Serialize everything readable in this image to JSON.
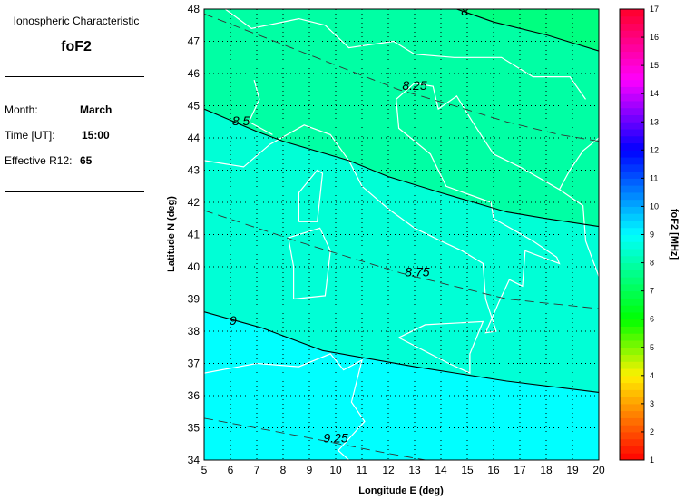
{
  "info": {
    "heading": "Ionospheric Characteristic",
    "characteristic": "foF2",
    "month_label": "Month:",
    "month_value": "March",
    "time_label": "Time [UT]:",
    "time_value": "15:00",
    "r12_label": "Effective R12:",
    "r12_value": "65"
  },
  "chart_data": {
    "type": "contour-map",
    "xlabel": "Longitude E (deg)",
    "ylabel": "Latitude N (deg)",
    "xlim": [
      5,
      20
    ],
    "ylim": [
      34,
      48
    ],
    "xticks": [
      "5",
      "6",
      "7",
      "8",
      "9",
      "10",
      "11",
      "12",
      "13",
      "14",
      "15",
      "16",
      "17",
      "18",
      "19",
      "20"
    ],
    "yticks": [
      "34",
      "35",
      "36",
      "37",
      "38",
      "39",
      "40",
      "41",
      "42",
      "43",
      "44",
      "45",
      "46",
      "47",
      "48"
    ],
    "grid": true,
    "colorbar": {
      "label": "foF2 [MHz]",
      "range": [
        1,
        17
      ],
      "ticks": [
        "1",
        "2",
        "3",
        "4",
        "5",
        "6",
        "7",
        "8",
        "9",
        "10",
        "11",
        "12",
        "13",
        "14",
        "15",
        "16",
        "17"
      ]
    },
    "contours": [
      {
        "level": 8,
        "label": "8",
        "style": "solid",
        "points": [
          [
            14.6,
            48
          ],
          [
            16,
            47.6
          ],
          [
            18,
            47.2
          ],
          [
            20,
            46.7
          ]
        ]
      },
      {
        "level": 8.25,
        "label": "8.25",
        "style": "dashed",
        "points": [
          [
            5,
            47.85
          ],
          [
            8,
            46.9
          ],
          [
            10.5,
            46.1
          ],
          [
            12.4,
            45.5
          ],
          [
            14.5,
            45
          ],
          [
            16.5,
            44.5
          ],
          [
            18.5,
            44.1
          ],
          [
            20,
            43.9
          ]
        ]
      },
      {
        "level": 8.5,
        "label": "8.5",
        "style": "solid",
        "points": [
          [
            5,
            44.9
          ],
          [
            7,
            44.2
          ],
          [
            8,
            43.9
          ],
          [
            10.5,
            43.3
          ],
          [
            12,
            42.8
          ],
          [
            14,
            42.3
          ],
          [
            16.5,
            41.7
          ],
          [
            18,
            41.5
          ],
          [
            20,
            41.25
          ]
        ]
      },
      {
        "level": 8.75,
        "label": "8.75",
        "style": "dashed",
        "points": [
          [
            5,
            41.75
          ],
          [
            8.5,
            40.8
          ],
          [
            12.5,
            39.8
          ],
          [
            16.5,
            39
          ],
          [
            20,
            38.7
          ]
        ]
      },
      {
        "level": 9,
        "label": "9",
        "style": "solid",
        "points": [
          [
            5,
            38.6
          ],
          [
            7.2,
            38.1
          ],
          [
            9.5,
            37.4
          ],
          [
            13,
            36.9
          ],
          [
            16.5,
            36.45
          ],
          [
            20,
            36.1
          ]
        ]
      },
      {
        "level": 9.25,
        "label": "9.25",
        "style": "dashed",
        "points": [
          [
            5,
            35.3
          ],
          [
            8.6,
            34.75
          ],
          [
            11.7,
            34.25
          ],
          [
            13.4,
            34
          ]
        ]
      }
    ],
    "fill_colors": {
      "above_8": "#00ff80",
      "8_to_8.5": "#00ffa4",
      "8.5_to_9": "#00ffd6",
      "below_9": "#00ffff"
    }
  }
}
